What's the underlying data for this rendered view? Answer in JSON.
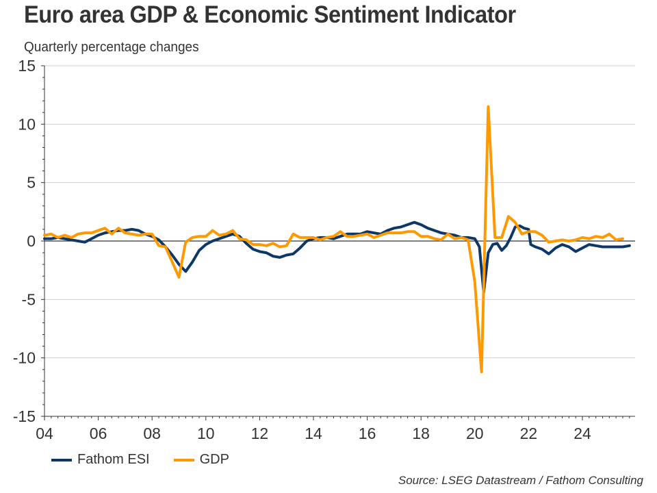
{
  "header": {
    "title": "Euro area GDP & Economic Sentiment Indicator",
    "subtitle": "Quarterly percentage changes"
  },
  "footer": {
    "source": "Source: LSEG Datastream / Fathom Consulting"
  },
  "colors": {
    "esi": "#0d3766",
    "gdp": "#ff9900",
    "gridline": "#d0d0d0",
    "axis": "#333333"
  },
  "chart_data": {
    "type": "line",
    "title": "Euro area GDP & Economic Sentiment Indicator",
    "subtitle": "Quarterly percentage changes",
    "xlabel": "",
    "ylabel": "",
    "ylim": [
      -15,
      15
    ],
    "xlim": [
      2004.0,
      2026.0
    ],
    "yticks": [
      15,
      10,
      5,
      0,
      -5,
      -10,
      -15
    ],
    "ytick_labels": [
      "15",
      "10",
      "5",
      "0",
      "-5",
      "-10",
      "-15"
    ],
    "xticks": [
      2004,
      2006,
      2008,
      2010,
      2012,
      2014,
      2016,
      2018,
      2020,
      2022,
      2024
    ],
    "xtick_labels": [
      "04",
      "06",
      "08",
      "10",
      "12",
      "14",
      "16",
      "18",
      "20",
      "22",
      "24"
    ],
    "grid": true,
    "legend_position": "bottom-left",
    "series": [
      {
        "name": "Fathom ESI",
        "frequency": "monthly-approx",
        "x": [
          2004.0,
          2004.25,
          2004.5,
          2004.75,
          2005.0,
          2005.25,
          2005.5,
          2005.75,
          2006.0,
          2006.25,
          2006.5,
          2006.75,
          2007.0,
          2007.25,
          2007.5,
          2007.75,
          2008.0,
          2008.25,
          2008.5,
          2008.75,
          2009.0,
          2009.25,
          2009.5,
          2009.75,
          2010.0,
          2010.25,
          2010.5,
          2010.75,
          2011.0,
          2011.25,
          2011.5,
          2011.75,
          2012.0,
          2012.25,
          2012.5,
          2012.75,
          2013.0,
          2013.25,
          2013.5,
          2013.75,
          2014.0,
          2014.25,
          2014.5,
          2014.75,
          2015.0,
          2015.25,
          2015.5,
          2015.75,
          2016.0,
          2016.25,
          2016.5,
          2016.75,
          2017.0,
          2017.25,
          2017.5,
          2017.75,
          2018.0,
          2018.25,
          2018.5,
          2018.75,
          2019.0,
          2019.25,
          2019.5,
          2019.75,
          2020.0,
          2020.17,
          2020.33,
          2020.5,
          2020.67,
          2020.83,
          2021.0,
          2021.17,
          2021.33,
          2021.5,
          2021.67,
          2021.83,
          2022.0,
          2022.08,
          2022.25,
          2022.5,
          2022.75,
          2023.0,
          2023.25,
          2023.5,
          2023.75,
          2024.0,
          2024.25,
          2024.5,
          2024.75,
          2025.0,
          2025.25,
          2025.5,
          2025.75
        ],
        "values": [
          0.2,
          0.2,
          0.3,
          0.2,
          0.1,
          0.0,
          -0.1,
          0.2,
          0.5,
          0.7,
          0.8,
          0.9,
          0.9,
          1.0,
          0.9,
          0.6,
          0.4,
          0.1,
          -0.5,
          -1.2,
          -2.0,
          -2.6,
          -1.8,
          -0.8,
          -0.3,
          0.0,
          0.2,
          0.4,
          0.6,
          0.4,
          -0.2,
          -0.7,
          -0.9,
          -1.0,
          -1.3,
          -1.4,
          -1.2,
          -1.1,
          -0.6,
          0.0,
          0.2,
          0.3,
          0.3,
          0.2,
          0.4,
          0.6,
          0.6,
          0.6,
          0.8,
          0.7,
          0.6,
          0.9,
          1.1,
          1.2,
          1.4,
          1.6,
          1.4,
          1.1,
          0.9,
          0.7,
          0.6,
          0.5,
          0.3,
          0.3,
          0.2,
          -0.5,
          -4.4,
          -1.0,
          -0.3,
          -0.2,
          -0.8,
          -0.4,
          0.3,
          1.2,
          1.3,
          1.1,
          1.0,
          -0.3,
          -0.5,
          -0.7,
          -1.1,
          -0.6,
          -0.3,
          -0.5,
          -0.9,
          -0.6,
          -0.3,
          -0.4,
          -0.5,
          -0.5,
          -0.5,
          -0.5,
          -0.4
        ]
      },
      {
        "name": "GDP",
        "frequency": "quarterly",
        "x": [
          2004.0,
          2004.25,
          2004.5,
          2004.75,
          2005.0,
          2005.25,
          2005.5,
          2005.75,
          2006.0,
          2006.25,
          2006.5,
          2006.75,
          2007.0,
          2007.25,
          2007.5,
          2007.75,
          2008.0,
          2008.25,
          2008.5,
          2008.75,
          2009.0,
          2009.25,
          2009.5,
          2009.75,
          2010.0,
          2010.25,
          2010.5,
          2010.75,
          2011.0,
          2011.25,
          2011.5,
          2011.75,
          2012.0,
          2012.25,
          2012.5,
          2012.75,
          2013.0,
          2013.25,
          2013.5,
          2013.75,
          2014.0,
          2014.25,
          2014.5,
          2014.75,
          2015.0,
          2015.25,
          2015.5,
          2015.75,
          2016.0,
          2016.25,
          2016.5,
          2016.75,
          2017.0,
          2017.25,
          2017.5,
          2017.75,
          2018.0,
          2018.25,
          2018.5,
          2018.75,
          2019.0,
          2019.25,
          2019.5,
          2019.75,
          2020.0,
          2020.25,
          2020.5,
          2020.75,
          2021.0,
          2021.25,
          2021.5,
          2021.75,
          2022.0,
          2022.25,
          2022.5,
          2022.75,
          2023.0,
          2023.25,
          2023.5,
          2023.75,
          2024.0,
          2024.25,
          2024.5,
          2024.75,
          2025.0,
          2025.25,
          2025.5
        ],
        "values": [
          0.5,
          0.6,
          0.3,
          0.5,
          0.3,
          0.6,
          0.7,
          0.7,
          0.9,
          1.1,
          0.6,
          1.1,
          0.7,
          0.6,
          0.5,
          0.6,
          0.6,
          -0.4,
          -0.5,
          -1.8,
          -3.1,
          -0.1,
          0.3,
          0.4,
          0.4,
          0.9,
          0.5,
          0.6,
          0.9,
          0.2,
          0.1,
          -0.3,
          -0.3,
          -0.4,
          -0.2,
          -0.5,
          -0.4,
          0.6,
          0.3,
          0.3,
          0.3,
          0.1,
          0.3,
          0.4,
          0.8,
          0.4,
          0.4,
          0.5,
          0.6,
          0.3,
          0.5,
          0.7,
          0.7,
          0.7,
          0.8,
          0.8,
          0.4,
          0.4,
          0.2,
          0.1,
          0.6,
          0.2,
          0.3,
          0.1,
          -3.5,
          -11.2,
          11.5,
          0.3,
          0.3,
          2.1,
          1.6,
          0.6,
          0.8,
          0.8,
          0.5,
          -0.1,
          0.0,
          0.1,
          0.0,
          0.1,
          0.3,
          0.2,
          0.4,
          0.3,
          0.6,
          0.1,
          0.2
        ]
      }
    ]
  }
}
